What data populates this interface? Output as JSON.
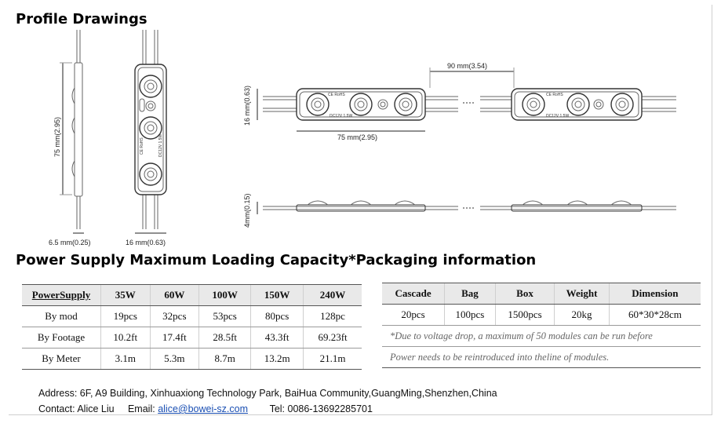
{
  "profile": {
    "title": "Profile Drawings",
    "dims": {
      "height_75": "75 mm(2.95)",
      "thick_65": "6.5 mm(0.25)",
      "width_16": "16 mm(0.63)",
      "side_16": "16 mm(0.63)",
      "length_75": "75 mm(2.95)",
      "pitch_90": "90 mm(3.54)",
      "thick_4": "4mm(0.15)"
    },
    "marks": {
      "ce_rohs": "CE RoHS",
      "voltage": "DC12V 1.5W"
    }
  },
  "section2_title": "Power Supply Maximum Loading Capacity*Packaging information",
  "supply_table": {
    "headers": [
      "PowerSupply",
      "35W",
      "60W",
      "100W",
      "150W",
      "240W"
    ],
    "rows": [
      [
        "By mod",
        "19pcs",
        "32pcs",
        "53pcs",
        "80pcs",
        "128pc"
      ],
      [
        "By Footage",
        "10.2ft",
        "17.4ft",
        "28.5ft",
        "43.3ft",
        "69.23ft"
      ],
      [
        "By Meter",
        "3.1m",
        "5.3m",
        "8.7m",
        "13.2m",
        "21.1m"
      ]
    ]
  },
  "pack_table": {
    "headers": [
      "Cascade",
      "Bag",
      "Box",
      "Weight",
      "Dimension"
    ],
    "row": [
      "20pcs",
      "100pcs",
      "1500pcs",
      "20kg",
      "60*30*28cm"
    ],
    "note1": "*Due to voltage drop, a maximum of 50 modules can be run before",
    "note2": "Power needs to be reintroduced into theline of modules."
  },
  "footer": {
    "address": "Address: 6F, A9 Building, Xinhuaxiong Technology Park, BaiHua Community,GuangMing,Shenzhen,China",
    "contact_label": "Contact: Alice Liu",
    "email_label": "Email:",
    "email": "alice@bowei-sz.com",
    "tel": "Tel: 0086-13692285701"
  }
}
